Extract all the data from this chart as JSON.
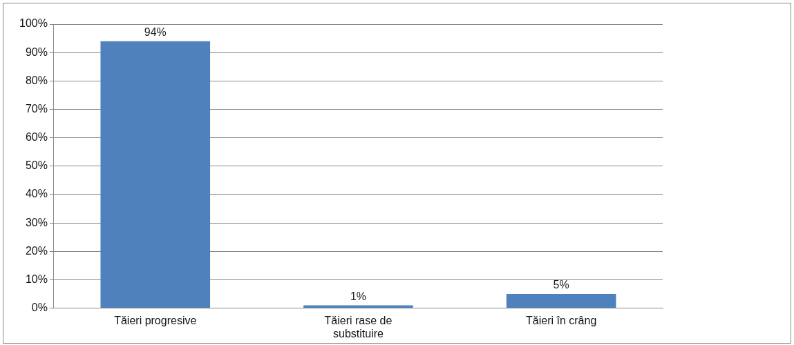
{
  "chart_data": {
    "type": "bar",
    "categories": [
      "Tăieri progresive",
      "Tăieri rase de substituire",
      "Tăieri în crâng"
    ],
    "values": [
      94,
      1,
      5
    ],
    "value_labels": [
      "94%",
      "1%",
      "5%"
    ],
    "color": "#4f81bd",
    "ylim": [
      0,
      100
    ],
    "yticks": [
      {
        "value": 0,
        "label": "0%"
      },
      {
        "value": 10,
        "label": "10%"
      },
      {
        "value": 20,
        "label": "20%"
      },
      {
        "value": 30,
        "label": "30%"
      },
      {
        "value": 40,
        "label": "40%"
      },
      {
        "value": 50,
        "label": "50%"
      },
      {
        "value": 60,
        "label": "60%"
      },
      {
        "value": 70,
        "label": "70%"
      },
      {
        "value": 80,
        "label": "80%"
      },
      {
        "value": 90,
        "label": "90%"
      },
      {
        "value": 100,
        "label": "100%"
      }
    ],
    "grid": "y",
    "legend": false
  }
}
